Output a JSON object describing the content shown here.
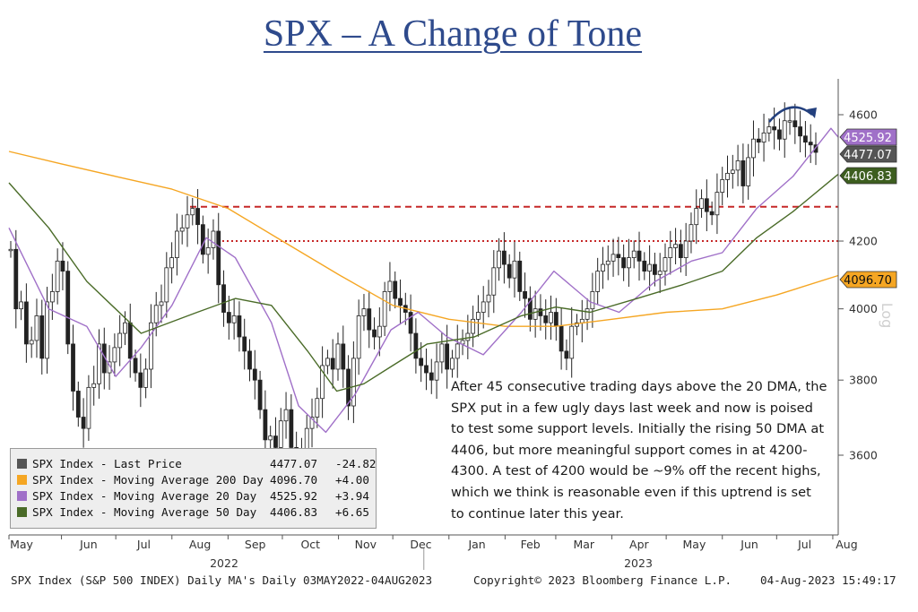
{
  "title": "SPX – A Change of Tone",
  "chart_data": {
    "type": "line",
    "x_range": [
      "2022-05-03",
      "2023-08-04"
    ],
    "y_range": [
      3400,
      4700
    ],
    "y_ticks": [
      3600,
      3800,
      4000,
      4200,
      4600
    ],
    "month_labels": [
      "May",
      "Jun",
      "Jul",
      "Aug",
      "Sep",
      "Oct",
      "Nov",
      "Dec",
      "Jan",
      "Feb",
      "Mar",
      "Apr",
      "May",
      "Jun",
      "Jul",
      "Aug"
    ],
    "year_labels": [
      "2022",
      "2023"
    ],
    "scale_label": "Log",
    "grid": false,
    "legend_position": "bottom-left",
    "price_closes": [
      4175,
      4000,
      4020,
      3900,
      3910,
      3980,
      3860,
      4020,
      4050,
      4140,
      4110,
      3900,
      3770,
      3700,
      3670,
      3780,
      3790,
      3900,
      3820,
      3850,
      3890,
      3930,
      3960,
      3860,
      3820,
      3780,
      3830,
      3960,
      4010,
      4020,
      4120,
      4150,
      4230,
      4240,
      4280,
      4300,
      4250,
      4160,
      4180,
      4230,
      4070,
      3990,
      3960,
      3980,
      3920,
      3880,
      3830,
      3800,
      3720,
      3640,
      3650,
      3620,
      3690,
      3720,
      3620,
      3600,
      3580,
      3670,
      3700,
      3750,
      3840,
      3860,
      3830,
      3900,
      3830,
      3730,
      3860,
      3980,
      4000,
      3940,
      3920,
      3950,
      4050,
      4080,
      4030,
      4010,
      3990,
      3930,
      3860,
      3840,
      3820,
      3800,
      3850,
      3900,
      3830,
      3860,
      3900,
      3910,
      3930,
      3970,
      3990,
      4020,
      4040,
      4120,
      4170,
      4130,
      4090,
      4140,
      4050,
      4030,
      3970,
      4000,
      3980,
      3960,
      3990,
      3950,
      3880,
      3860,
      3950,
      3960,
      3970,
      4000,
      4050,
      4110,
      4130,
      4140,
      4160,
      4150,
      4120,
      4150,
      4170,
      4140,
      4110,
      4130,
      4100,
      4110,
      4150,
      4180,
      4190,
      4150,
      4200,
      4250,
      4300,
      4330,
      4290,
      4280,
      4350,
      4390,
      4410,
      4420,
      4450,
      4370,
      4460,
      4520,
      4510,
      4540,
      4560,
      4550,
      4520,
      4580,
      4580,
      4560,
      4530,
      4510,
      4501,
      4477
    ],
    "series": [
      {
        "name": "SPX Index - Last Price",
        "color": "#555555",
        "last": "4477.07",
        "change": "-24.82"
      },
      {
        "name": "SPX Index - Moving Average 200 Day",
        "color": "#f5a623",
        "last": "4096.70",
        "change": "+4.00",
        "x": [
          "2022-05-03",
          "2022-06-01",
          "2022-07-01",
          "2022-08-01",
          "2022-09-01",
          "2022-10-01",
          "2022-11-01",
          "2022-12-01",
          "2023-01-01",
          "2023-02-01",
          "2023-03-01",
          "2023-04-01",
          "2023-05-01",
          "2023-06-01",
          "2023-07-01",
          "2023-08-04"
        ],
        "values": [
          4480,
          4440,
          4400,
          4360,
          4300,
          4200,
          4100,
          4010,
          3970,
          3950,
          3950,
          3970,
          3990,
          4000,
          4040,
          4097
        ]
      },
      {
        "name": "SPX Index - Moving Average 20 Day",
        "color": "#a070c8",
        "last": "4525.92",
        "change": "+3.94",
        "x": [
          "2022-05-03",
          "2022-05-25",
          "2022-06-15",
          "2022-07-01",
          "2022-07-15",
          "2022-08-01",
          "2022-08-20",
          "2022-09-05",
          "2022-09-25",
          "2022-10-10",
          "2022-10-25",
          "2022-11-10",
          "2022-11-30",
          "2022-12-15",
          "2022-12-31",
          "2023-01-20",
          "2023-02-10",
          "2023-02-28",
          "2023-03-20",
          "2023-04-05",
          "2023-04-25",
          "2023-05-15",
          "2023-06-01",
          "2023-06-20",
          "2023-07-10",
          "2023-07-31",
          "2023-08-04"
        ],
        "values": [
          4240,
          4000,
          3950,
          3810,
          3890,
          4010,
          4210,
          4150,
          3960,
          3730,
          3660,
          3760,
          3940,
          3990,
          3920,
          3870,
          3990,
          4110,
          4020,
          3990,
          4080,
          4140,
          4165,
          4300,
          4400,
          4555,
          4526
        ]
      },
      {
        "name": "SPX Index - Moving Average 50 Day",
        "color": "#4a6b28",
        "last": "4406.83",
        "change": "+6.65",
        "x": [
          "2022-05-03",
          "2022-05-25",
          "2022-06-15",
          "2022-07-15",
          "2022-08-15",
          "2022-09-05",
          "2022-09-25",
          "2022-10-15",
          "2022-10-31",
          "2022-11-15",
          "2022-12-01",
          "2022-12-20",
          "2023-01-15",
          "2023-02-10",
          "2023-03-01",
          "2023-03-20",
          "2023-04-15",
          "2023-05-10",
          "2023-06-01",
          "2023-06-20",
          "2023-07-10",
          "2023-08-04"
        ],
        "values": [
          4380,
          4240,
          4080,
          3930,
          3990,
          4030,
          4010,
          3880,
          3770,
          3790,
          3840,
          3900,
          3920,
          3980,
          4005,
          3990,
          4030,
          4070,
          4110,
          4210,
          4290,
          4407
        ]
      }
    ],
    "reference_lines": [
      {
        "y": 4305,
        "style": "dashed"
      },
      {
        "y": 4200,
        "style": "dotted"
      }
    ],
    "value_tags": [
      "4525.92",
      "4477.07",
      "4406.83",
      "4096.70"
    ]
  },
  "annotation": "After 45 consecutive trading days above the 20 DMA, the SPX put in a few ugly days last week and now is poised to test some support levels. Initially the rising 50 DMA at 4406, but more meaningful support comes in at 4200-4300. A test of 4200 would be ~9% off the recent highs, which we think is reasonable even if this uptrend is set to continue later this year.",
  "footer": {
    "left": "SPX Index (S&P 500 INDEX) Daily MA's  Daily 03MAY2022-04AUG2023",
    "center": "Copyright© 2023 Bloomberg Finance L.P.",
    "right": "04-Aug-2023 15:49:17"
  }
}
